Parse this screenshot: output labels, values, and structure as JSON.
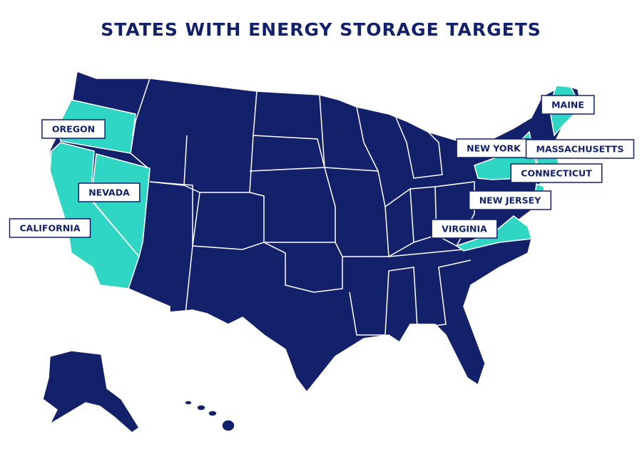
{
  "title": "STATES WITH ENERGY STORAGE TARGETS",
  "state_labels": [
    "OREGON",
    "NEVADA",
    "CALIFORNIA",
    "NEW YORK",
    "MAINE",
    "MASSACHUSETTS",
    "CONNECTICUT",
    "NEW JERSEY",
    "VIRGINIA"
  ]
}
